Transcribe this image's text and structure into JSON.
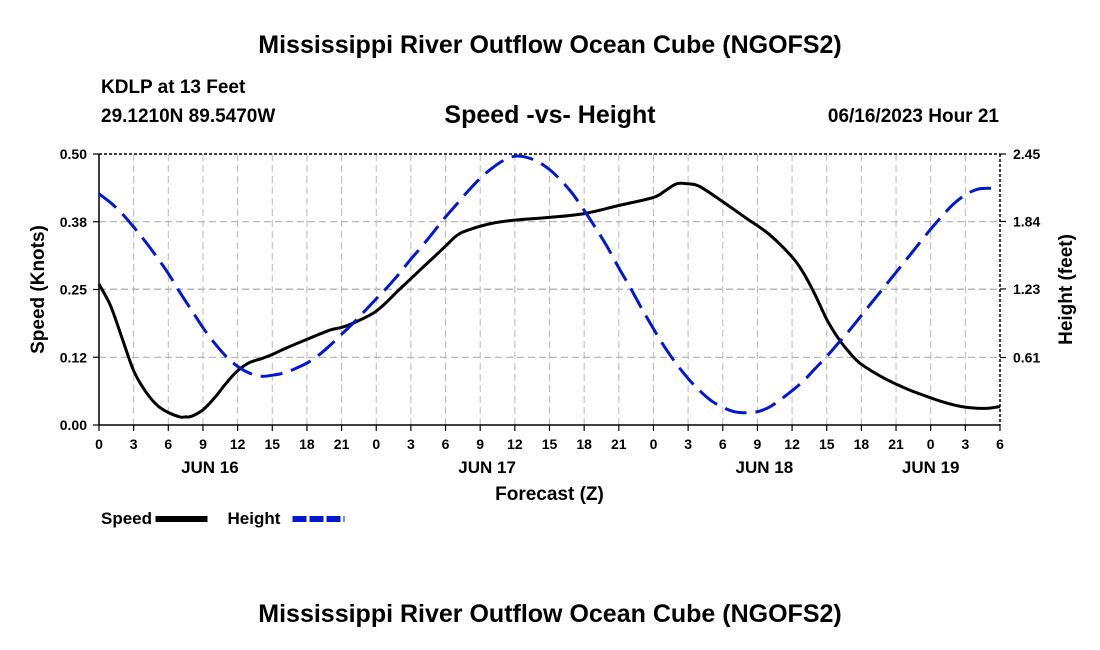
{
  "header": {
    "title": "Mississippi River Outflow Ocean Cube (NGOFS2)",
    "station": "KDLP at 13 Feet",
    "coordinates": "29.1210N  89.5470W",
    "timestamp": "06/16/2023 Hour 21"
  },
  "footer": {
    "title": "Mississippi River Outflow Ocean Cube (NGOFS2)"
  },
  "chart_data": {
    "type": "line",
    "title": "Speed -vs- Height",
    "xlabel": "Forecast (Z)",
    "ylabel": "Speed (Knots)",
    "y2label": "Height (feet)",
    "x_range_hours": [
      0,
      78
    ],
    "x_tick_labels": [
      "0",
      "3",
      "6",
      "9",
      "12",
      "15",
      "18",
      "21",
      "0",
      "3",
      "6",
      "9",
      "12",
      "15",
      "18",
      "21",
      "0",
      "3",
      "6",
      "9",
      "12",
      "15",
      "18",
      "21",
      "0",
      "3",
      "6"
    ],
    "x_tick_step_hours": 3,
    "date_labels": [
      {
        "label": "JUN 16",
        "hour": 9.6
      },
      {
        "label": "JUN 17",
        "hour": 33.6
      },
      {
        "label": "JUN 18",
        "hour": 57.6
      },
      {
        "label": "JUN 19",
        "hour": 72
      }
    ],
    "ylim": [
      0,
      0.5
    ],
    "y_ticks": [
      0.0,
      0.125,
      0.25,
      0.375,
      0.5
    ],
    "y_tick_labels": [
      "0.00",
      "0.12",
      "0.25",
      "0.38",
      "0.50"
    ],
    "y2lim": [
      0.0,
      2.45
    ],
    "y2_ticks": [
      0.61,
      1.23,
      1.84,
      2.45
    ],
    "y2_tick_labels": [
      "0.61",
      "1.23",
      "1.84",
      "2.45"
    ],
    "grid": true,
    "series": [
      {
        "name": "Speed",
        "axis": "left",
        "color": "#000000",
        "dash": "solid",
        "x": [
          0,
          1,
          2,
          3,
          4,
          5,
          6,
          7,
          7.5,
          8,
          9,
          10,
          11,
          12,
          13,
          14,
          15,
          16,
          18,
          20,
          21,
          22,
          24,
          26,
          27,
          28,
          29,
          30,
          31,
          32,
          34,
          36,
          39,
          42,
          45,
          48,
          49,
          50,
          51,
          52,
          54,
          56,
          58,
          60,
          61,
          62,
          63,
          64,
          65,
          66,
          68,
          70,
          71,
          72,
          73,
          74,
          75,
          76,
          77,
          78
        ],
        "values": [
          0.26,
          0.22,
          0.16,
          0.1,
          0.063,
          0.037,
          0.023,
          0.015,
          0.015,
          0.016,
          0.028,
          0.05,
          0.077,
          0.1,
          0.115,
          0.122,
          0.13,
          0.14,
          0.158,
          0.175,
          0.18,
          0.188,
          0.21,
          0.25,
          0.27,
          0.29,
          0.31,
          0.33,
          0.35,
          0.36,
          0.372,
          0.378,
          0.383,
          0.39,
          0.405,
          0.42,
          0.432,
          0.445,
          0.445,
          0.44,
          0.412,
          0.382,
          0.352,
          0.31,
          0.28,
          0.24,
          0.195,
          0.16,
          0.133,
          0.112,
          0.086,
          0.066,
          0.058,
          0.05,
          0.043,
          0.037,
          0.033,
          0.031,
          0.031,
          0.034
        ]
      },
      {
        "name": "Height",
        "axis": "right",
        "color": "#0018d0",
        "dash": "dashed",
        "x": [
          0,
          1,
          2,
          3,
          4,
          5,
          6,
          7,
          8,
          9,
          10,
          11,
          12,
          13,
          14,
          15,
          16,
          17,
          18,
          19,
          20,
          21,
          22,
          23,
          24,
          25,
          26,
          27,
          28,
          29,
          30,
          31,
          32,
          33,
          34,
          35,
          36,
          37,
          38,
          39,
          40,
          41,
          42,
          43,
          44,
          45,
          46,
          47,
          48,
          49,
          50,
          51,
          52,
          53,
          54,
          55,
          56,
          57,
          58,
          59,
          60,
          61,
          62,
          63,
          64,
          65,
          66,
          67,
          68,
          69,
          70,
          71,
          72,
          73,
          74,
          75,
          76,
          77,
          78
        ],
        "values": [
          2.09,
          2.01,
          1.91,
          1.79,
          1.66,
          1.52,
          1.37,
          1.2,
          1.04,
          0.88,
          0.74,
          0.62,
          0.53,
          0.47,
          0.44,
          0.45,
          0.47,
          0.51,
          0.56,
          0.63,
          0.72,
          0.82,
          0.92,
          1.03,
          1.14,
          1.25,
          1.37,
          1.5,
          1.62,
          1.75,
          1.88,
          2.0,
          2.12,
          2.23,
          2.32,
          2.39,
          2.43,
          2.42,
          2.38,
          2.31,
          2.21,
          2.09,
          1.94,
          1.78,
          1.61,
          1.42,
          1.24,
          1.05,
          0.87,
          0.7,
          0.55,
          0.42,
          0.31,
          0.22,
          0.16,
          0.12,
          0.11,
          0.12,
          0.16,
          0.23,
          0.31,
          0.4,
          0.51,
          0.62,
          0.74,
          0.86,
          0.99,
          1.12,
          1.25,
          1.38,
          1.51,
          1.64,
          1.77,
          1.89,
          2.0,
          2.08,
          2.13,
          2.14,
          2.13
        ]
      }
    ],
    "legend": [
      {
        "label": "Speed",
        "color": "#000000",
        "dash": "solid"
      },
      {
        "label": "Height",
        "color": "#0018d0",
        "dash": "dashed"
      }
    ],
    "legend_position": "bottom-left"
  }
}
